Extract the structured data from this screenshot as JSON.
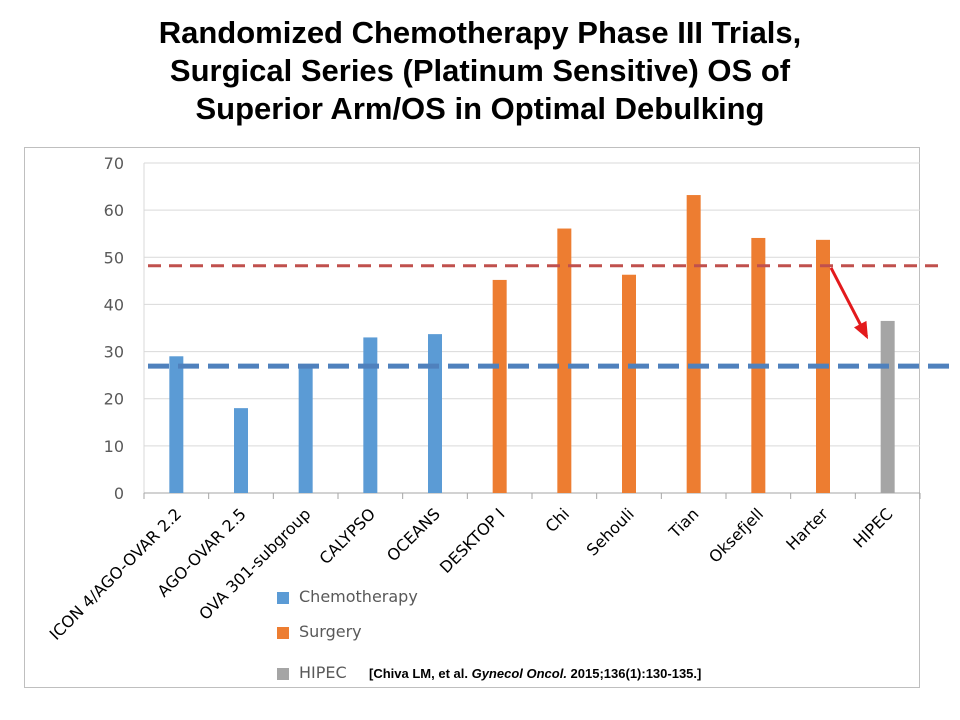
{
  "title_lines": [
    "Randomized Chemotherapy Phase III Trials,",
    "Surgical Series (Platinum Sensitive) OS of",
    "Superior Arm/OS in Optimal Debulking"
  ],
  "citation": {
    "open": "[Chiva LM, et al. ",
    "journal": "Gynecol Oncol.",
    "rest": " 2015;136(1):130-135.]"
  },
  "colors": {
    "chemotherapy": "#5b9bd5",
    "surgery": "#ed7d31",
    "hipec": "#a5a5a5",
    "red_line": "#c0504d",
    "blue_line": "#4f81bd",
    "arrow": "#e31a1c",
    "grid": "#d9d9d9"
  },
  "legend": [
    {
      "label": "Chemotherapy",
      "color_key": "chemotherapy"
    },
    {
      "label": "Surgery",
      "color_key": "surgery"
    },
    {
      "label": "HIPEC",
      "color_key": "hipec"
    }
  ],
  "chart_data": {
    "type": "bar",
    "categories": [
      "ICON 4/AGO-OVAR 2.2",
      "AGO-OVAR 2.5",
      "OVA 301-subgroup",
      "CALYPSO",
      "OCEANS",
      "DESKTOP I",
      "Chi",
      "Sehouli",
      "Tian",
      "Oksefjell",
      "Harter",
      "HIPEC"
    ],
    "values": [
      29,
      18,
      27,
      33,
      33.7,
      45.2,
      56.1,
      46.3,
      63.2,
      54.1,
      53.7,
      36.5
    ],
    "groups": [
      "chemotherapy",
      "chemotherapy",
      "chemotherapy",
      "chemotherapy",
      "chemotherapy",
      "surgery",
      "surgery",
      "surgery",
      "surgery",
      "surgery",
      "surgery",
      "hipec"
    ],
    "ylim": [
      0,
      70
    ],
    "yticks": [
      0,
      10,
      20,
      30,
      40,
      50,
      60,
      70
    ],
    "reference_lines": [
      {
        "value": 48.2,
        "color_key": "red_line"
      },
      {
        "value": 26.9,
        "color_key": "blue_line"
      }
    ],
    "arrow": {
      "from_value": 48.2,
      "to_value": 33.4
    },
    "grid": true,
    "legend_position": "bottom"
  }
}
